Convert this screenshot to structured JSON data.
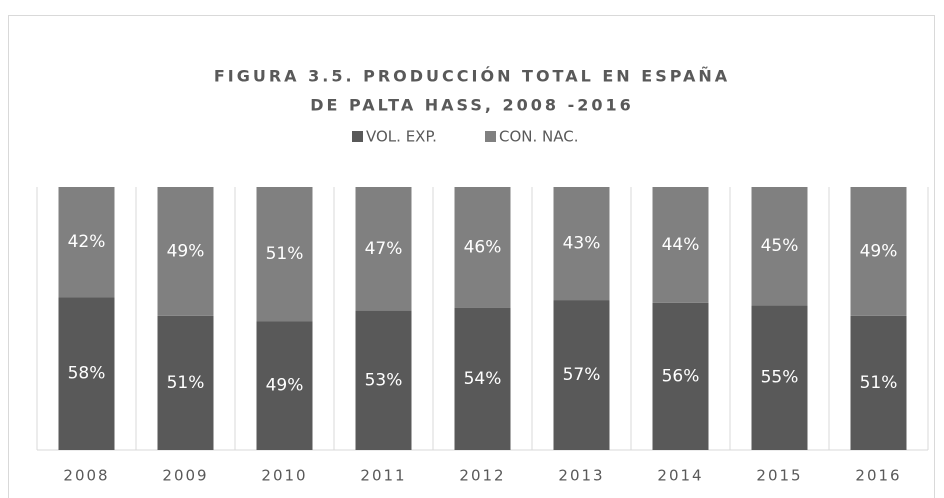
{
  "chart_data": {
    "type": "stacked_bar",
    "title": [
      "FIGURA 3.5. PRODUCCIÓN TOTAL EN ESPAÑA",
      "DE PALTA HASS, 2008 -2016"
    ],
    "categories": [
      "2008",
      "2009",
      "2010",
      "2011",
      "2012",
      "2013",
      "2014",
      "2015",
      "2016"
    ],
    "series": [
      {
        "name": "VOL. EXP.",
        "color": "#595959",
        "values": [
          58,
          51,
          49,
          53,
          54,
          57,
          56,
          55,
          51
        ],
        "value_labels": [
          "58%",
          "51%",
          "49%",
          "53%",
          "54%",
          "57%",
          "56%",
          "55%",
          "51%"
        ]
      },
      {
        "name": "CON. NAC.",
        "color": "#808080",
        "values": [
          42,
          49,
          51,
          47,
          46,
          43,
          44,
          45,
          49
        ],
        "value_labels": [
          "42%",
          "49%",
          "51%",
          "47%",
          "46%",
          "43%",
          "44%",
          "45%",
          "49%"
        ]
      }
    ],
    "ylim": [
      0,
      100
    ],
    "legend": "top"
  }
}
